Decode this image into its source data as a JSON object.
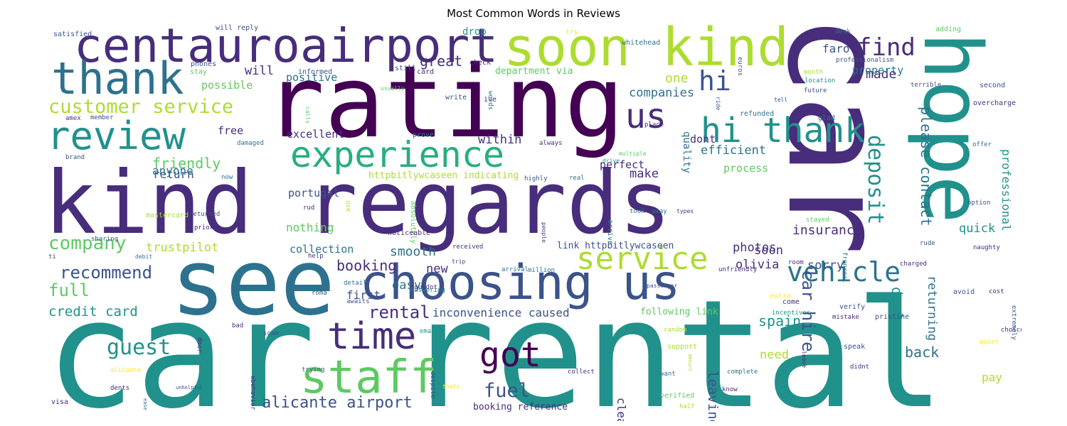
{
  "title": "Most Common Words in Reviews",
  "palette": {
    "deep_purple": "#440154",
    "indigo": "#472d7b",
    "slate_blue": "#3b528b",
    "steel_blue": "#2c728e",
    "teal": "#21918c",
    "green_teal": "#28ae80",
    "green": "#5ec962",
    "lime": "#addc30",
    "yellow": "#fde725"
  },
  "words": [
    {
      "text": "car rental",
      "color": "#21918c"
    },
    {
      "text": "kind regards",
      "color": "#472d7b"
    },
    {
      "text": "rating",
      "color": "#440154"
    },
    {
      "text": "car",
      "color": "#472d7b"
    },
    {
      "text": "hope",
      "color": "#21918c"
    },
    {
      "text": "see",
      "color": "#2c728e"
    },
    {
      "text": "choosing us",
      "color": "#3b528b"
    },
    {
      "text": "soon kind",
      "color": "#addc30"
    },
    {
      "text": "centauroairport",
      "color": "#472d7b"
    },
    {
      "text": "thank",
      "color": "#2c728e"
    },
    {
      "text": "review",
      "color": "#21918c"
    },
    {
      "text": "experience",
      "color": "#28ae80"
    },
    {
      "text": "hi thank",
      "color": "#21918c"
    },
    {
      "text": "service",
      "color": "#addc30"
    },
    {
      "text": "staff",
      "color": "#5ec962"
    },
    {
      "text": "time",
      "color": "#472d7b"
    },
    {
      "text": "got",
      "color": "#440154"
    },
    {
      "text": "us",
      "color": "#472d7b"
    },
    {
      "text": "hi",
      "color": "#3b528b"
    },
    {
      "text": "find",
      "color": "#472d7b"
    },
    {
      "text": "deposit",
      "color": "#21918c"
    },
    {
      "text": "vehicle",
      "color": "#2c728e"
    },
    {
      "text": "customer service",
      "color": "#addc30"
    },
    {
      "text": "company",
      "color": "#5ec962"
    },
    {
      "text": "friendly",
      "color": "#5ec962"
    },
    {
      "text": "guest",
      "color": "#21918c"
    },
    {
      "text": "fuel",
      "color": "#3b528b"
    },
    {
      "text": "car hire",
      "color": "#3b528b"
    },
    {
      "text": "recommend",
      "color": "#3b528b"
    },
    {
      "text": "full",
      "color": "#5ec962"
    },
    {
      "text": "alicante airport",
      "color": "#3b528b"
    },
    {
      "text": "rental",
      "color": "#472d7b"
    },
    {
      "text": "credit card",
      "color": "#21918c"
    },
    {
      "text": "return",
      "color": "#3b528b"
    },
    {
      "text": "anyone",
      "color": "#2c728e"
    },
    {
      "text": "free",
      "color": "#472d7b"
    },
    {
      "text": "will",
      "color": "#472d7b"
    },
    {
      "text": "possible",
      "color": "#5ec962"
    },
    {
      "text": "positive",
      "color": "#2c728e"
    },
    {
      "text": "great",
      "color": "#472d7b"
    },
    {
      "text": "one",
      "color": "#addc30"
    },
    {
      "text": "made",
      "color": "#472d7b"
    },
    {
      "text": "faro",
      "color": "#3b528b"
    },
    {
      "text": "property",
      "color": "#2c728e"
    },
    {
      "text": "companies",
      "color": "#2c728e"
    },
    {
      "text": "efficient",
      "color": "#2c728e"
    },
    {
      "text": "quality",
      "color": "#2c728e"
    },
    {
      "text": "dont",
      "color": "#472d7b"
    },
    {
      "text": "excellent",
      "color": "#472d7b"
    },
    {
      "text": "within",
      "color": "#472d7b"
    },
    {
      "text": "perfect",
      "color": "#472d7b"
    },
    {
      "text": "make",
      "color": "#472d7b"
    },
    {
      "text": "process",
      "color": "#5ec962"
    },
    {
      "text": "please contact",
      "color": "#2c728e"
    },
    {
      "text": "professional",
      "color": "#21918c"
    },
    {
      "text": "insurance",
      "color": "#472d7b"
    },
    {
      "text": "quick",
      "color": "#21918c"
    },
    {
      "text": "photos",
      "color": "#472d7b"
    },
    {
      "text": "olivia",
      "color": "#472d7b"
    },
    {
      "text": "soon",
      "color": "#472d7b"
    },
    {
      "text": "sorry",
      "color": "#3b528b"
    },
    {
      "text": "portugal",
      "color": "#3b528b"
    },
    {
      "text": "nothing",
      "color": "#5ec962"
    },
    {
      "text": "trustpilot",
      "color": "#addc30"
    },
    {
      "text": "collection",
      "color": "#2c728e"
    },
    {
      "text": "smooth",
      "color": "#2c728e"
    },
    {
      "text": "booking",
      "color": "#472d7b"
    },
    {
      "text": "easy",
      "color": "#2c728e"
    },
    {
      "text": "new",
      "color": "#472d7b"
    },
    {
      "text": "first",
      "color": "#3b528b"
    },
    {
      "text": "inconvenience caused",
      "color": "#3b528b"
    },
    {
      "text": "following link",
      "color": "#5ec962"
    },
    {
      "text": "spain",
      "color": "#21918c"
    },
    {
      "text": "deal",
      "color": "#21918c"
    },
    {
      "text": "returning",
      "color": "#2c728e"
    },
    {
      "text": "back",
      "color": "#2c728e"
    },
    {
      "text": "need",
      "color": "#addc30"
    },
    {
      "text": "leaving",
      "color": "#3b528b"
    },
    {
      "text": "pay",
      "color": "#addc30"
    },
    {
      "text": "clean",
      "color": "#472d7b"
    },
    {
      "text": "drop",
      "color": "#21918c"
    },
    {
      "text": "department via",
      "color": "#5ec962"
    },
    {
      "text": "httpbitlywcaseen indicating",
      "color": "#addc30"
    },
    {
      "text": "link httpbitlywcaseen",
      "color": "#3b528b"
    },
    {
      "text": "booking reference",
      "color": "#472d7b"
    },
    {
      "text": "will reply",
      "color": "#3b528b"
    },
    {
      "text": "satisfied",
      "color": "#3b528b"
    },
    {
      "text": "try",
      "color": "#fde725"
    },
    {
      "text": "whitehead",
      "color": "#2c728e"
    },
    {
      "text": "check",
      "color": "#472d7b"
    },
    {
      "text": "phones",
      "color": "#3b528b"
    },
    {
      "text": "stay",
      "color": "#5ec962"
    },
    {
      "text": "informed",
      "color": "#3b528b"
    },
    {
      "text": "card",
      "color": "#472d7b"
    },
    {
      "text": "still",
      "color": "#3b528b"
    },
    {
      "text": "desk",
      "color": "#2c728e"
    },
    {
      "text": "adding",
      "color": "#5ec962"
    },
    {
      "text": "professionalism",
      "color": "#3b528b"
    },
    {
      "text": "month",
      "color": "#addc30"
    },
    {
      "text": "location",
      "color": "#21918c"
    },
    {
      "text": "future",
      "color": "#3b528b"
    },
    {
      "text": "terrible",
      "color": "#3b528b"
    },
    {
      "text": "second",
      "color": "#3b528b"
    },
    {
      "text": "overcharge",
      "color": "#472d7b"
    },
    {
      "text": "write",
      "color": "#3b528b"
    },
    {
      "text": "ive",
      "color": "#472d7b"
    },
    {
      "text": "refunded",
      "color": "#2c728e"
    },
    {
      "text": "glad",
      "color": "#2c728e"
    },
    {
      "text": "place",
      "color": "#472d7b"
    },
    {
      "text": "prove",
      "color": "#2c728e"
    },
    {
      "text": "always",
      "color": "#472d7b"
    },
    {
      "text": "damaged",
      "color": "#2c728e"
    },
    {
      "text": "brand",
      "color": "#3b528b"
    },
    {
      "text": "amex",
      "color": "#472d7b"
    },
    {
      "text": "member",
      "color": "#3b528b"
    },
    {
      "text": "multiple",
      "color": "#5ec962"
    },
    {
      "text": "drive",
      "color": "#21918c"
    },
    {
      "text": "real",
      "color": "#2c728e"
    },
    {
      "text": "offer",
      "color": "#2c728e"
    },
    {
      "text": "highly",
      "color": "#3b528b"
    },
    {
      "text": "now",
      "color": "#2c728e"
    },
    {
      "text": "mastercard",
      "color": "#addc30"
    },
    {
      "text": "returned",
      "color": "#3b528b"
    },
    {
      "text": "prior",
      "color": "#472d7b"
    },
    {
      "text": "rud",
      "color": "#472d7b"
    },
    {
      "text": "use",
      "color": "#addc30"
    },
    {
      "text": "absolutely",
      "color": "#5ec962"
    },
    {
      "text": "took",
      "color": "#2c728e"
    },
    {
      "text": "away",
      "color": "#2c728e"
    },
    {
      "text": "types",
      "color": "#472d7b"
    },
    {
      "text": "option",
      "color": "#3b528b"
    },
    {
      "text": "stayed",
      "color": "#5ec962"
    },
    {
      "text": "sharing",
      "color": "#3b528b"
    },
    {
      "text": "noticeable",
      "color": "#472d7b"
    },
    {
      "text": "received",
      "color": "#472d7b"
    },
    {
      "text": "people",
      "color": "#472d7b"
    },
    {
      "text": "arrive",
      "color": "#2c728e"
    },
    {
      "text": "frenreal",
      "color": "#2c728e"
    },
    {
      "text": "charged",
      "color": "#472d7b"
    },
    {
      "text": "rude",
      "color": "#3b528b"
    },
    {
      "text": "naughty",
      "color": "#472d7b"
    },
    {
      "text": "ti",
      "color": "#3b528b"
    },
    {
      "text": "debit",
      "color": "#2c728e"
    },
    {
      "text": "help",
      "color": "#472d7b"
    },
    {
      "text": "trip",
      "color": "#472d7b"
    },
    {
      "text": "arrival",
      "color": "#2c728e"
    },
    {
      "text": "million",
      "color": "#2c728e"
    },
    {
      "text": "unfriendly",
      "color": "#472d7b"
    },
    {
      "text": "room",
      "color": "#472d7b"
    },
    {
      "text": "detail",
      "color": "#2c728e"
    },
    {
      "text": "couldnt",
      "color": "#472d7b"
    },
    {
      "text": "answering",
      "color": "#2c728e"
    },
    {
      "text": "awaits",
      "color": "#3b528b"
    },
    {
      "text": "roma",
      "color": "#3b528b"
    },
    {
      "text": "passenger",
      "color": "#3b528b"
    },
    {
      "text": "extra",
      "color": "#fde725"
    },
    {
      "text": "come",
      "color": "#472d7b"
    },
    {
      "text": "avoid",
      "color": "#3b528b"
    },
    {
      "text": "cost",
      "color": "#472d7b"
    },
    {
      "text": "incentives",
      "color": "#21918c"
    },
    {
      "text": "verify",
      "color": "#3b528b"
    },
    {
      "text": "mistake",
      "color": "#472d7b"
    },
    {
      "text": "pristine",
      "color": "#3b528b"
    },
    {
      "text": "extremely",
      "color": "#3b528b"
    },
    {
      "text": "bad",
      "color": "#472d7b"
    },
    {
      "text": "emails",
      "color": "#21918c"
    },
    {
      "text": "random",
      "color": "#addc30"
    },
    {
      "text": "choice",
      "color": "#472d7b"
    },
    {
      "text": "door",
      "color": "#472d7b"
    },
    {
      "text": "scam",
      "color": "#3b528b"
    },
    {
      "text": "support",
      "color": "#addc30"
    },
    {
      "text": "amount",
      "color": "#addc30"
    },
    {
      "text": "speak",
      "color": "#3b528b"
    },
    {
      "text": "quiet",
      "color": "#fde725"
    },
    {
      "text": "leave",
      "color": "#472d7b"
    },
    {
      "text": "alicante",
      "color": "#fde725"
    },
    {
      "text": "trying",
      "color": "#3b528b"
    },
    {
      "text": "despite",
      "color": "#3b528b"
    },
    {
      "text": "collect",
      "color": "#472d7b"
    },
    {
      "text": "want",
      "color": "#2c728e"
    },
    {
      "text": "complete",
      "color": "#2c728e"
    },
    {
      "text": "didnt",
      "color": "#472d7b"
    },
    {
      "text": "dents",
      "color": "#472d7b"
    },
    {
      "text": "unhelpful",
      "color": "#3b528b"
    },
    {
      "text": "ebehavior",
      "color": "#472d7b"
    },
    {
      "text": "thats",
      "color": "#fde725"
    },
    {
      "text": "verified",
      "color": "#5ec962"
    },
    {
      "text": "know",
      "color": "#472d7b"
    },
    {
      "text": "half",
      "color": "#addc30"
    },
    {
      "text": "visa",
      "color": "#472d7b"
    },
    {
      "text": "ease",
      "color": "#2c728e"
    },
    {
      "text": "euros",
      "color": "#3b528b"
    },
    {
      "text": "words",
      "color": "#2c728e"
    },
    {
      "text": "usually",
      "color": "#5ec962"
    },
    {
      "text": "calls",
      "color": "#5ec962"
    },
    {
      "text": "ride",
      "color": "#3b528b"
    },
    {
      "text": "tell",
      "color": "#3b528b"
    },
    {
      "text": "authenticity",
      "color": "#5ec962"
    },
    {
      "text": "may",
      "color": "#3b528b"
    }
  ]
}
